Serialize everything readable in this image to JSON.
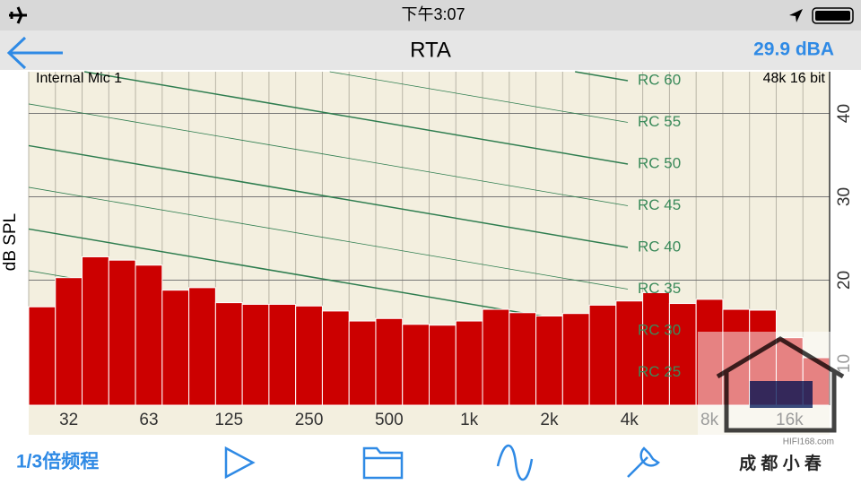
{
  "status_bar": {
    "time": "下午3:07"
  },
  "nav_bar": {
    "title": "RTA",
    "level": "29.9 dBA"
  },
  "chart_data": {
    "type": "bar",
    "source": "Internal Mic 1",
    "format": "48k 16 bit",
    "ylabel": "dB SPL",
    "categories": [
      null,
      "32",
      null,
      null,
      "63",
      null,
      null,
      "125",
      null,
      null,
      "250",
      null,
      null,
      "500",
      null,
      null,
      "1k",
      null,
      null,
      "2k",
      null,
      null,
      "4k",
      null,
      null,
      "8k",
      null,
      null,
      "16k",
      null
    ],
    "values": [
      16.8,
      20.3,
      22.8,
      22.4,
      21.8,
      18.8,
      19.1,
      17.3,
      17.1,
      17.1,
      16.9,
      16.3,
      15.1,
      15.4,
      14.7,
      14.6,
      15.1,
      16.5,
      16.1,
      15.7,
      16.0,
      17.0,
      17.5,
      18.5,
      17.2,
      17.7,
      16.5,
      16.4,
      13.1,
      10.7
    ],
    "color": "#cc0000",
    "ylim": [
      5,
      45
    ],
    "yticks": [
      10,
      20,
      30,
      40
    ],
    "grid": true,
    "annotations": [
      "RC 60",
      "RC 55",
      "RC 50",
      "RC 45",
      "RC 40",
      "RC 35",
      "RC 30",
      "RC 25"
    ]
  },
  "toolbar": {
    "mode": "1/3倍频程"
  },
  "watermark": {
    "site": "HIFI168.com",
    "name": "成 都 小 春"
  }
}
